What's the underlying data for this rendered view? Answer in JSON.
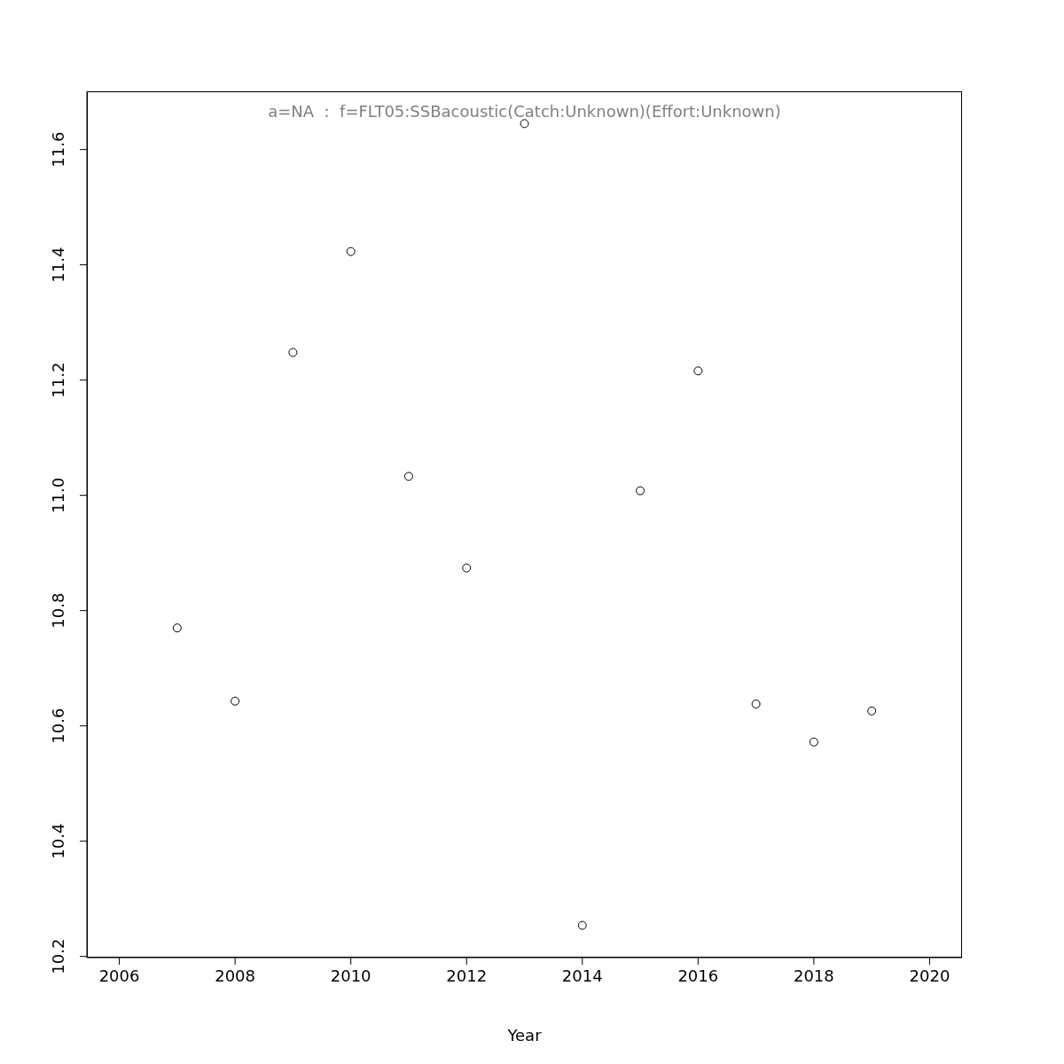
{
  "chart_data": {
    "type": "scatter",
    "xlabel": "Year",
    "annotations": [
      "a=NA  :  f=FLT05:SSBacoustic(Catch:Unknown)(Effort:Unknown)"
    ],
    "x": [
      2007,
      2008,
      2009,
      2010,
      2011,
      2012,
      2013,
      2014,
      2015,
      2016,
      2017,
      2018,
      2019
    ],
    "series": [
      {
        "color": "#000000",
        "values": [
          10.77,
          10.643,
          11.248,
          11.423,
          11.033,
          10.874,
          11.645,
          10.254,
          11.008,
          11.216,
          10.638,
          10.572,
          10.626
        ]
      }
    ],
    "xlim": [
      2005.44,
      2020.56
    ],
    "xticks": [
      2006,
      2008,
      2010,
      2012,
      2014,
      2016,
      2018,
      2020
    ],
    "ylim": [
      10.198,
      11.701
    ],
    "yticks": [
      10.2,
      10.4,
      10.6,
      10.8,
      {
        "value": 11,
        "label": "11.0"
      },
      11.2,
      11.4,
      11.6
    ],
    "grid": false,
    "legend": false,
    "marker": "circle"
  }
}
